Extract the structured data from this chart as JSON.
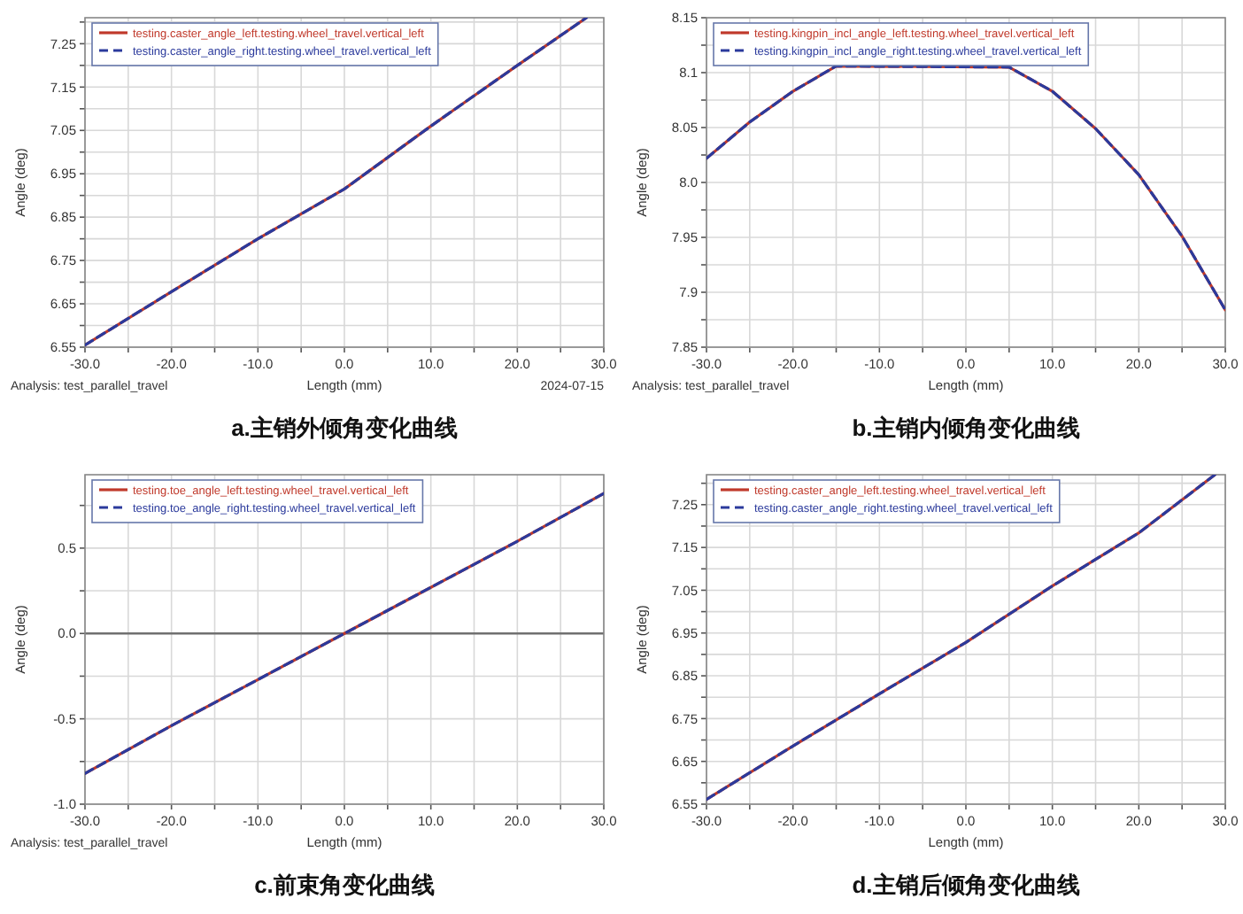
{
  "chart_data": [
    {
      "type": "line",
      "title": "a.主销外倾角变化曲线",
      "xlabel": "Length (mm)",
      "ylabel": "Angle (deg)",
      "annotations": [
        "Analysis: test_parallel_travel",
        "2024-07-15"
      ],
      "xlim": [
        -30,
        30
      ],
      "ylim": [
        6.55,
        7.31
      ],
      "xticks": [
        {
          "value": -30,
          "label": "-30.0"
        },
        {
          "value": -25,
          "label": null
        },
        {
          "value": -20,
          "label": "-20.0"
        },
        {
          "value": -15,
          "label": null
        },
        {
          "value": -10,
          "label": "-10.0"
        },
        {
          "value": -5,
          "label": null
        },
        {
          "value": 0,
          "label": "0.0"
        },
        {
          "value": 5,
          "label": null
        },
        {
          "value": 10,
          "label": "10.0"
        },
        {
          "value": 15,
          "label": null
        },
        {
          "value": 20,
          "label": "20.0"
        },
        {
          "value": 25,
          "label": null
        },
        {
          "value": 30,
          "label": "30.0"
        }
      ],
      "yticks": [
        6.55,
        {
          "value": 6.6,
          "label": null
        },
        6.65,
        {
          "value": 6.7,
          "label": null
        },
        6.75,
        {
          "value": 6.8,
          "label": null
        },
        6.85,
        {
          "value": 6.9,
          "label": null
        },
        6.95,
        {
          "value": 7.0,
          "label": null
        },
        7.05,
        {
          "value": 7.1,
          "label": null
        },
        7.15,
        {
          "value": 7.2,
          "label": null
        },
        7.25,
        {
          "value": 7.3,
          "label": null
        }
      ],
      "grid": true,
      "legend": "top left",
      "series": [
        {
          "name": "testing.caster_angle_left.testing.wheel_travel.vertical_left",
          "color": "#c0392b",
          "line_style": "solid",
          "x": [
            -30,
            -20,
            -10,
            0,
            10,
            20,
            28
          ],
          "values": [
            6.555,
            6.678,
            6.8,
            6.915,
            7.06,
            7.2,
            7.31
          ]
        },
        {
          "name": "testing.caster_angle_right.testing.wheel_travel.vertical_left",
          "color": "#2b3a9c",
          "line_style": "dashed",
          "x": [
            -30,
            -20,
            -10,
            0,
            10,
            20,
            28
          ],
          "values": [
            6.555,
            6.678,
            6.8,
            6.915,
            7.06,
            7.2,
            7.31
          ]
        }
      ]
    },
    {
      "type": "line",
      "title": "b.主销内倾角变化曲线",
      "xlabel": "Length (mm)",
      "ylabel": "Angle (deg)",
      "annotations": [
        "Analysis: test_parallel_travel"
      ],
      "xlim": [
        -30,
        30
      ],
      "ylim": [
        7.85,
        8.15
      ],
      "xticks": [
        {
          "value": -30,
          "label": "-30.0"
        },
        {
          "value": -25,
          "label": null
        },
        {
          "value": -20,
          "label": "-20.0"
        },
        {
          "value": -15,
          "label": null
        },
        {
          "value": -10,
          "label": "-10.0"
        },
        {
          "value": -5,
          "label": null
        },
        {
          "value": 0,
          "label": "0.0"
        },
        {
          "value": 5,
          "label": null
        },
        {
          "value": 10,
          "label": "10.0"
        },
        {
          "value": 15,
          "label": null
        },
        {
          "value": 20,
          "label": "20.0"
        },
        {
          "value": 25,
          "label": null
        },
        {
          "value": 30,
          "label": "30.0"
        }
      ],
      "yticks": [
        7.85,
        {
          "value": 7.875,
          "label": null
        },
        7.9,
        {
          "value": 7.925,
          "label": null
        },
        7.95,
        {
          "value": 7.975,
          "label": null
        },
        {
          "value": 8.0,
          "label": "8.0"
        },
        {
          "value": 8.025,
          "label": null
        },
        8.05,
        {
          "value": 8.075,
          "label": null
        },
        8.1,
        {
          "value": 8.125,
          "label": null
        },
        8.15
      ],
      "grid": true,
      "legend": "top left",
      "series": [
        {
          "name": "testing.kingpin_incl_angle_left.testing.wheel_travel.vertical_left",
          "color": "#c0392b",
          "line_style": "solid",
          "x": [
            -30,
            -25,
            -20,
            -15,
            5,
            10,
            15,
            20,
            25,
            30
          ],
          "values": [
            8.022,
            8.055,
            8.083,
            8.106,
            8.105,
            8.083,
            8.049,
            8.007,
            7.951,
            7.884
          ]
        },
        {
          "name": "testing.kingpin_incl_angle_right.testing.wheel_travel.vertical_left",
          "color": "#2b3a9c",
          "line_style": "dashed",
          "x": [
            -30,
            -25,
            -20,
            -15,
            5,
            10,
            15,
            20,
            25,
            30
          ],
          "values": [
            8.022,
            8.055,
            8.083,
            8.106,
            8.105,
            8.083,
            8.049,
            8.007,
            7.951,
            7.884
          ]
        }
      ]
    },
    {
      "type": "line",
      "title": "c.前束角变化曲线",
      "xlabel": "Length (mm)",
      "ylabel": "Angle (deg)",
      "annotations": [
        "Analysis: test_parallel_travel"
      ],
      "xlim": [
        -30,
        30
      ],
      "ylim": [
        -1.0,
        0.93
      ],
      "xticks": [
        {
          "value": -30,
          "label": "-30.0"
        },
        {
          "value": -25,
          "label": null
        },
        {
          "value": -20,
          "label": "-20.0"
        },
        {
          "value": -15,
          "label": null
        },
        {
          "value": -10,
          "label": "-10.0"
        },
        {
          "value": -5,
          "label": null
        },
        {
          "value": 0,
          "label": "0.0"
        },
        {
          "value": 5,
          "label": null
        },
        {
          "value": 10,
          "label": "10.0"
        },
        {
          "value": 15,
          "label": null
        },
        {
          "value": 20,
          "label": "20.0"
        },
        {
          "value": 25,
          "label": null
        },
        {
          "value": 30,
          "label": "30.0"
        }
      ],
      "yticks": [
        {
          "value": -1.0,
          "label": "-1.0"
        },
        {
          "value": -0.75,
          "label": null
        },
        -0.5,
        {
          "value": -0.25,
          "label": null
        },
        {
          "value": 0,
          "label": "0.0"
        },
        {
          "value": 0.25,
          "label": null
        },
        0.5,
        {
          "value": 0.75,
          "label": null
        }
      ],
      "grid": true,
      "legend": "top left",
      "ref_lines": [
        {
          "axis": "y",
          "value": 0,
          "label": null,
          "color": "#707070"
        }
      ],
      "series": [
        {
          "name": "testing.toe_angle_left.testing.wheel_travel.vertical_left",
          "color": "#c0392b",
          "line_style": "solid",
          "x": [
            -30,
            -20,
            -10,
            0,
            10,
            20,
            30
          ],
          "values": [
            -0.82,
            -0.54,
            -0.27,
            0.0,
            0.27,
            0.54,
            0.82
          ]
        },
        {
          "name": "testing.toe_angle_right.testing.wheel_travel.vertical_left",
          "color": "#2b3a9c",
          "line_style": "dashed",
          "x": [
            -30,
            -20,
            -10,
            0,
            10,
            20,
            30
          ],
          "values": [
            -0.82,
            -0.54,
            -0.27,
            0.0,
            0.27,
            0.54,
            0.82
          ]
        }
      ]
    },
    {
      "type": "line",
      "title": "d.主销后倾角变化曲线",
      "xlabel": "Length (mm)",
      "ylabel": "Angle (deg)",
      "xlim": [
        -30,
        30
      ],
      "ylim": [
        6.55,
        7.32
      ],
      "xticks": [
        {
          "value": -30,
          "label": "-30.0"
        },
        {
          "value": -25,
          "label": null
        },
        {
          "value": -20,
          "label": "-20.0"
        },
        {
          "value": -15,
          "label": null
        },
        {
          "value": -10,
          "label": "-10.0"
        },
        {
          "value": -5,
          "label": null
        },
        {
          "value": 0,
          "label": "0.0"
        },
        {
          "value": 5,
          "label": null
        },
        {
          "value": 10,
          "label": "10.0"
        },
        {
          "value": 15,
          "label": null
        },
        {
          "value": 20,
          "label": "20.0"
        },
        {
          "value": 25,
          "label": null
        },
        {
          "value": 30,
          "label": "30.0"
        }
      ],
      "yticks": [
        6.55,
        {
          "value": 6.6,
          "label": null
        },
        6.65,
        {
          "value": 6.7,
          "label": null
        },
        6.75,
        {
          "value": 6.8,
          "label": null
        },
        6.85,
        {
          "value": 6.9,
          "label": null
        },
        6.95,
        {
          "value": 7.0,
          "label": null
        },
        7.05,
        {
          "value": 7.1,
          "label": null
        },
        7.15,
        {
          "value": 7.2,
          "label": null
        },
        7.25,
        {
          "value": 7.3,
          "label": null
        }
      ],
      "grid": true,
      "legend": "top left",
      "series": [
        {
          "name": "testing.caster_angle_left.testing.wheel_travel.vertical_left",
          "color": "#c0392b",
          "line_style": "solid",
          "x": [
            -30,
            -20,
            -10,
            0,
            10,
            20,
            28.8
          ],
          "values": [
            6.561,
            6.686,
            6.808,
            6.928,
            7.06,
            7.184,
            7.32
          ]
        },
        {
          "name": "testing.caster_angle_right.testing.wheel_travel.vertical_left",
          "color": "#2b3a9c",
          "line_style": "dashed",
          "x": [
            -30,
            -20,
            -10,
            0,
            10,
            20,
            28.8
          ],
          "values": [
            6.561,
            6.686,
            6.808,
            6.928,
            7.06,
            7.184,
            7.32
          ]
        }
      ]
    }
  ]
}
